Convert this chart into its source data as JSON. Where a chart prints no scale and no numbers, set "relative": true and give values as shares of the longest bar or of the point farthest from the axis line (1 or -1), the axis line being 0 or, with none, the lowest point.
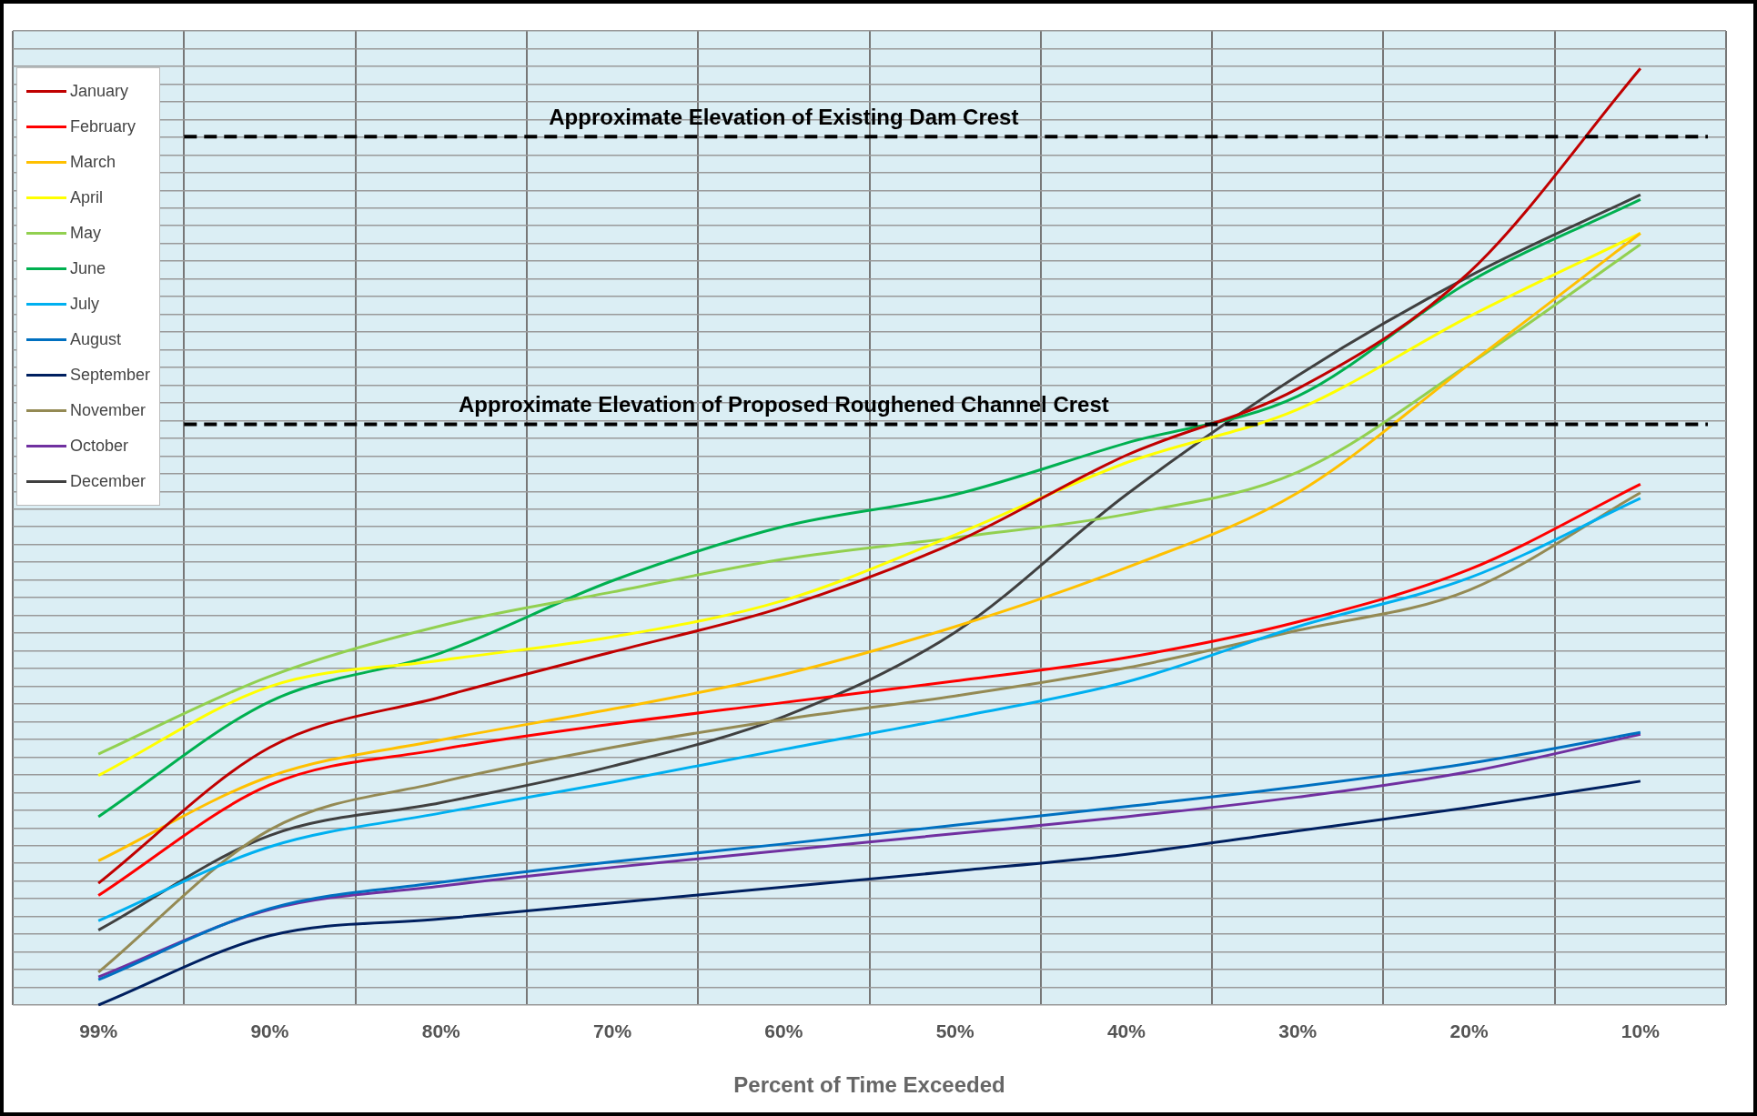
{
  "chart_data": {
    "type": "line",
    "relative": true,
    "xlabel": "Percent of Time Exceeded",
    "categories": [
      "99%",
      "90%",
      "80%",
      "70%",
      "60%",
      "50%",
      "40%",
      "30%",
      "20%",
      "10%"
    ],
    "grid": true,
    "legend": "top left",
    "marker": "none",
    "line_style": "solid",
    "series": [
      {
        "name": "January",
        "color": "#c00000",
        "values": [
          0.13,
          0.275,
          0.329,
          0.377,
          0.425,
          0.494,
          0.587,
          0.658,
          0.782,
          1
        ]
      },
      {
        "name": "February",
        "color": "#ff0000",
        "values": [
          0.117,
          0.235,
          0.273,
          0.3,
          0.323,
          0.346,
          0.371,
          0.409,
          0.465,
          0.556
        ]
      },
      {
        "name": "March",
        "color": "#ffc000",
        "values": [
          0.154,
          0.244,
          0.283,
          0.316,
          0.353,
          0.404,
          0.467,
          0.547,
          0.684,
          0.824
        ]
      },
      {
        "name": "April",
        "color": "#ffff00",
        "values": [
          0.245,
          0.34,
          0.368,
          0.393,
          0.432,
          0.502,
          0.579,
          0.636,
          0.735,
          0.824
        ]
      },
      {
        "name": "May",
        "color": "#92d050",
        "values": [
          0.268,
          0.351,
          0.405,
          0.441,
          0.476,
          0.499,
          0.524,
          0.569,
          0.684,
          0.812
        ]
      },
      {
        "name": "June",
        "color": "#00b050",
        "values": [
          0.201,
          0.324,
          0.376,
          0.453,
          0.511,
          0.545,
          0.6,
          0.65,
          0.772,
          0.86
        ]
      },
      {
        "name": "July",
        "color": "#00b0f0",
        "values": [
          0.09,
          0.169,
          0.205,
          0.238,
          0.273,
          0.307,
          0.345,
          0.404,
          0.456,
          0.541
        ]
      },
      {
        "name": "August",
        "color": "#0070c0",
        "values": [
          0.027,
          0.103,
          0.131,
          0.153,
          0.172,
          0.192,
          0.212,
          0.233,
          0.258,
          0.291
        ]
      },
      {
        "name": "September",
        "color": "#002060",
        "values": [
          0,
          0.074,
          0.092,
          0.109,
          0.126,
          0.143,
          0.161,
          0.186,
          0.211,
          0.239
        ]
      },
      {
        "name": "November",
        "color": "#948a54",
        "values": [
          0.035,
          0.187,
          0.238,
          0.275,
          0.305,
          0.33,
          0.36,
          0.4,
          0.443,
          0.547
        ]
      },
      {
        "name": "October",
        "color": "#7030a0",
        "values": [
          0.03,
          0.102,
          0.127,
          0.147,
          0.165,
          0.183,
          0.201,
          0.222,
          0.249,
          0.289
        ]
      },
      {
        "name": "December",
        "color": "#404040",
        "values": [
          0.08,
          0.181,
          0.216,
          0.255,
          0.308,
          0.398,
          0.545,
          0.672,
          0.778,
          0.865
        ]
      }
    ],
    "ref_lines": [
      {
        "axis": "y",
        "value": 0.927,
        "label": "Approximate Elevation of Existing Dam Crest",
        "color": "#000000",
        "line_style": "dashed"
      },
      {
        "axis": "y",
        "value": 0.62,
        "label": "Approximate Elevation of Proposed Roughened Channel Crest",
        "color": "#000000",
        "line_style": "dashed"
      }
    ]
  }
}
